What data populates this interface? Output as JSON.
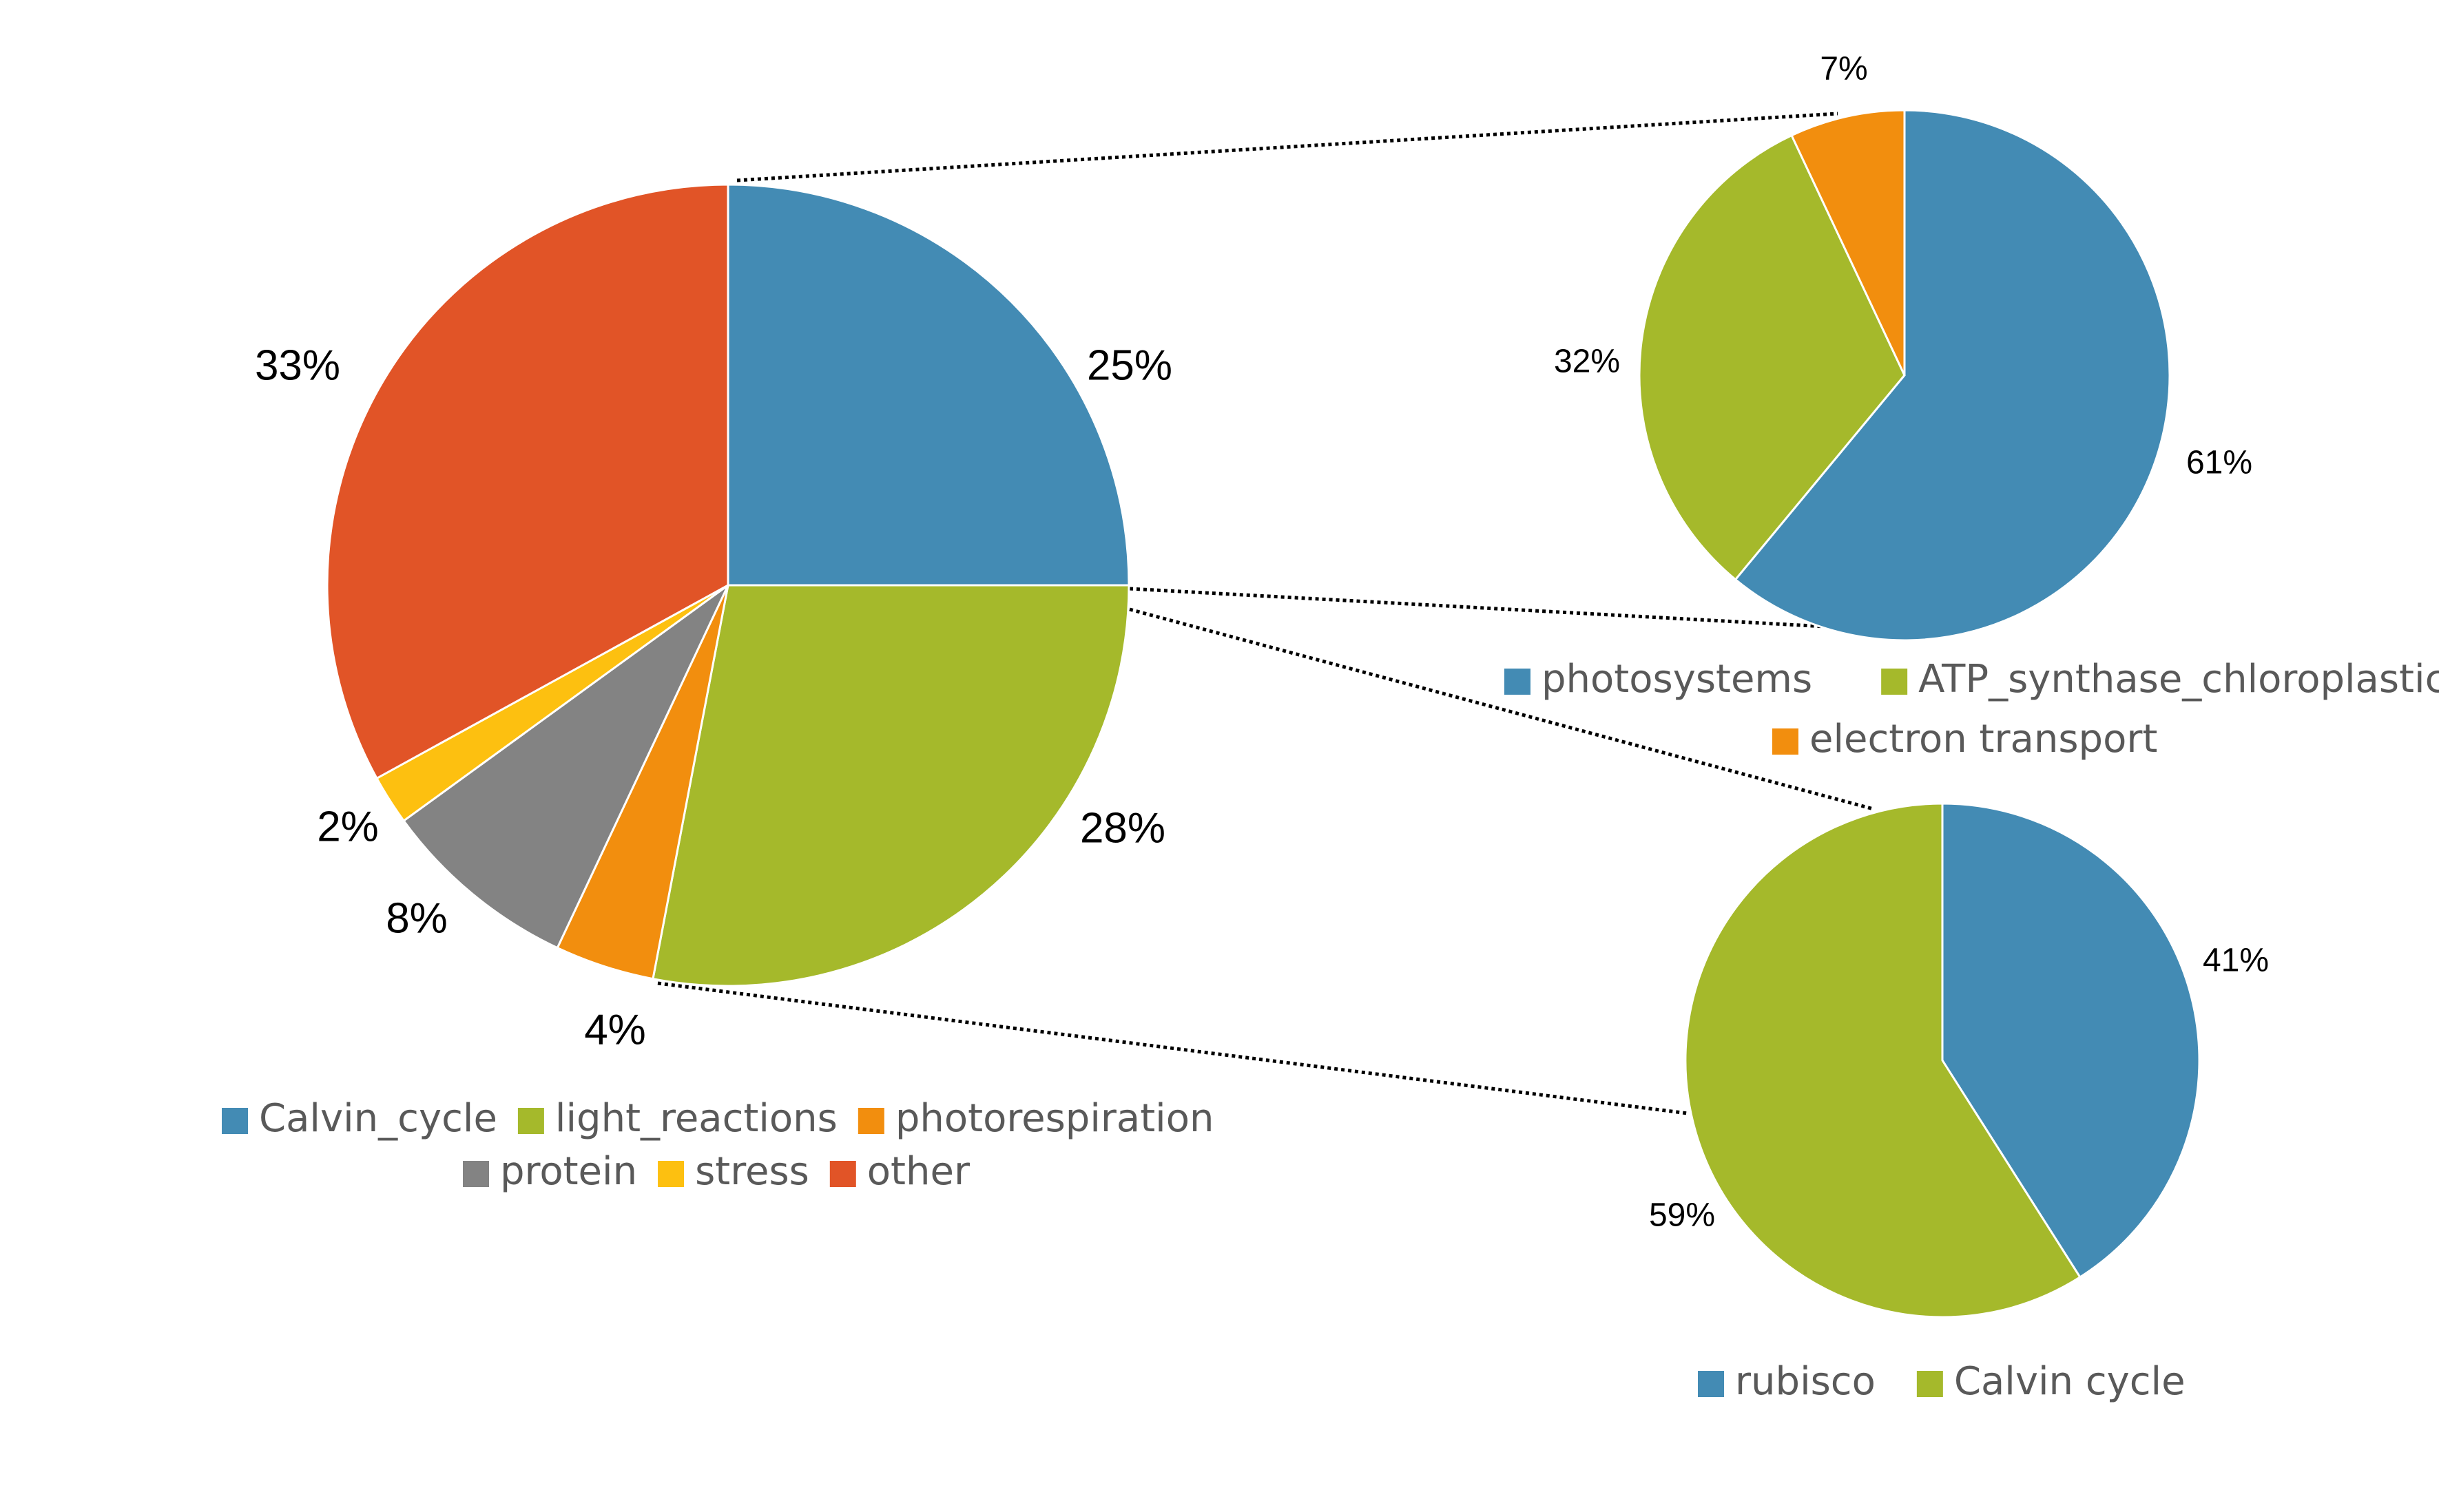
{
  "chart_data": [
    {
      "id": "main",
      "type": "pie",
      "title": "",
      "categories": [
        "Calvin_cycle",
        "light_reactions",
        "photorespiration",
        "protein",
        "stress",
        "other"
      ],
      "values": [
        25,
        28,
        4,
        8,
        2,
        33
      ],
      "data_labels": [
        "25%",
        "28%",
        "4%",
        "8%",
        "2%",
        "33%"
      ],
      "colors": [
        "#438BB4",
        "#A5B92B",
        "#F28E0E",
        "#838383",
        "#FDC010",
        "#E15427"
      ],
      "legend_position": "bottom"
    },
    {
      "id": "light_reactions_breakdown",
      "type": "pie",
      "title": "",
      "categories": [
        "photosystems",
        "ATP_synthase_chloroplastic",
        "electron transport"
      ],
      "values": [
        61,
        32,
        7
      ],
      "data_labels": [
        "61%",
        "32%",
        "7%"
      ],
      "colors": [
        "#438BB4",
        "#A5B92B",
        "#F28E0E"
      ],
      "legend_position": "bottom"
    },
    {
      "id": "calvin_breakdown",
      "type": "pie",
      "title": "",
      "categories": [
        "rubisco",
        "Calvin cycle"
      ],
      "values": [
        41,
        59
      ],
      "data_labels": [
        "41%",
        "59%"
      ],
      "colors": [
        "#438BB4",
        "#A5B92B"
      ],
      "legend_position": "bottom"
    }
  ]
}
